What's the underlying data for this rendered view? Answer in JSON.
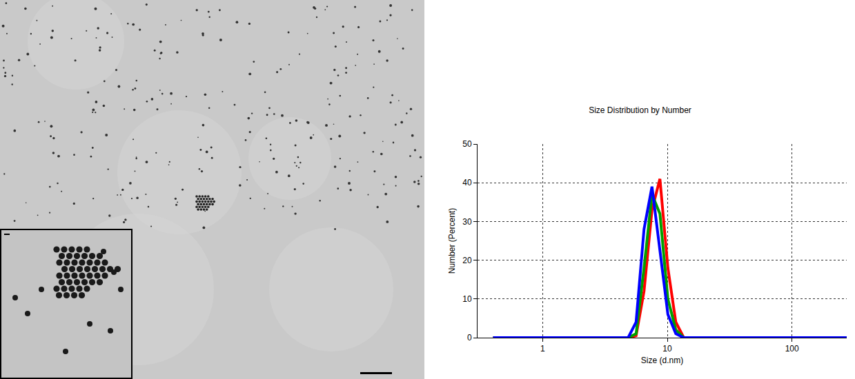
{
  "chart_data": {
    "type": "line",
    "title": "Size Distribution by Number",
    "xlabel": "Size (d.nm)",
    "ylabel": "Number (Percent)",
    "x": [
      0.4,
      0.4632,
      0.5365,
      0.6213,
      0.7195,
      0.8332,
      0.9649,
      1.117,
      1.294,
      1.499,
      1.736,
      2.01,
      2.328,
      2.696,
      3.122,
      3.615,
      4.187,
      4.849,
      5.615,
      6.503,
      7.531,
      8.721,
      10.1,
      11.7,
      13.54,
      15.69,
      18.17,
      21.04,
      24.36,
      28.21,
      32.67,
      37.84,
      43.82,
      50.75,
      58.77,
      68.06,
      78.82,
      91.28,
      105.7,
      122.4,
      141.8,
      164.2,
      190.1,
      220.2,
      255.0,
      295.3
    ],
    "series": [
      {
        "color": "#ff0000",
        "values": [
          0,
          0,
          0,
          0,
          0,
          0,
          0,
          0,
          0,
          0,
          0,
          0,
          0,
          0,
          0,
          0,
          0,
          0,
          0.5,
          12,
          33,
          41,
          18,
          4,
          0,
          0,
          0,
          0,
          0,
          0,
          0,
          0,
          0,
          0,
          0,
          0,
          0,
          0,
          0,
          0,
          0,
          0,
          0,
          0,
          0,
          0
        ]
      },
      {
        "color": "#00a000",
        "values": [
          0,
          0,
          0,
          0,
          0,
          0,
          0,
          0,
          0,
          0,
          0,
          0,
          0,
          0,
          0,
          0,
          0,
          0,
          1,
          18,
          37,
          32,
          10,
          2,
          0,
          0,
          0,
          0,
          0,
          0,
          0,
          0,
          0,
          0,
          0,
          0,
          0,
          0,
          0,
          0,
          0,
          0,
          0,
          0,
          0,
          0
        ]
      },
      {
        "color": "#0000ff",
        "values": [
          0,
          0,
          0,
          0,
          0,
          0,
          0,
          0,
          0,
          0,
          0,
          0,
          0,
          0,
          0,
          0,
          0,
          0,
          4,
          28,
          39,
          22,
          6,
          1,
          0,
          0,
          0,
          0,
          0,
          0,
          0,
          0,
          0,
          0,
          0,
          0,
          0,
          0,
          0,
          0,
          0,
          0,
          0,
          0,
          0,
          0
        ]
      }
    ],
    "xlim": [
      0.3,
      275
    ],
    "xticks": [
      1,
      10,
      100
    ],
    "ylim": [
      0,
      50
    ],
    "yticks": [
      0,
      10,
      20,
      30,
      40,
      50
    ],
    "log": "x",
    "grid": true
  }
}
